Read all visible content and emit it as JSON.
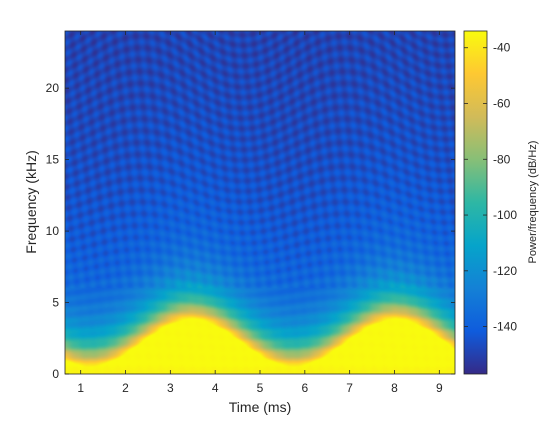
{
  "chart_data": {
    "type": "heatmap",
    "title": "",
    "xlabel": "Time (ms)",
    "ylabel": "Frequency (kHz)",
    "xlim": [
      0.65,
      9.35
    ],
    "ylim": [
      0,
      24
    ],
    "xticks": [
      1,
      2,
      3,
      4,
      5,
      6,
      7,
      8,
      9
    ],
    "yticks": [
      0,
      5,
      10,
      15,
      20
    ],
    "colorbar": {
      "label": "Power/frequency (dB/Hz)",
      "range": [
        -157,
        -34
      ],
      "ticks": [
        -140,
        -120,
        -100,
        -80,
        -60,
        -40
      ],
      "colormap": "parula",
      "stops": [
        "#352a87",
        "#0f5cdd",
        "#1481d6",
        "#06a4ca",
        "#2eb7a4",
        "#87bf77",
        "#d1bb59",
        "#fec832",
        "#f9fb0e"
      ]
    },
    "description_of_data": {
      "signal": "frequency-modulated tone",
      "fundamental_kHz_range": [
        0.5,
        3.8
      ],
      "modulation_period_ms": 4.55,
      "low_freq_peak_dB": -34,
      "high_freq_floor_dB": -150
    }
  }
}
